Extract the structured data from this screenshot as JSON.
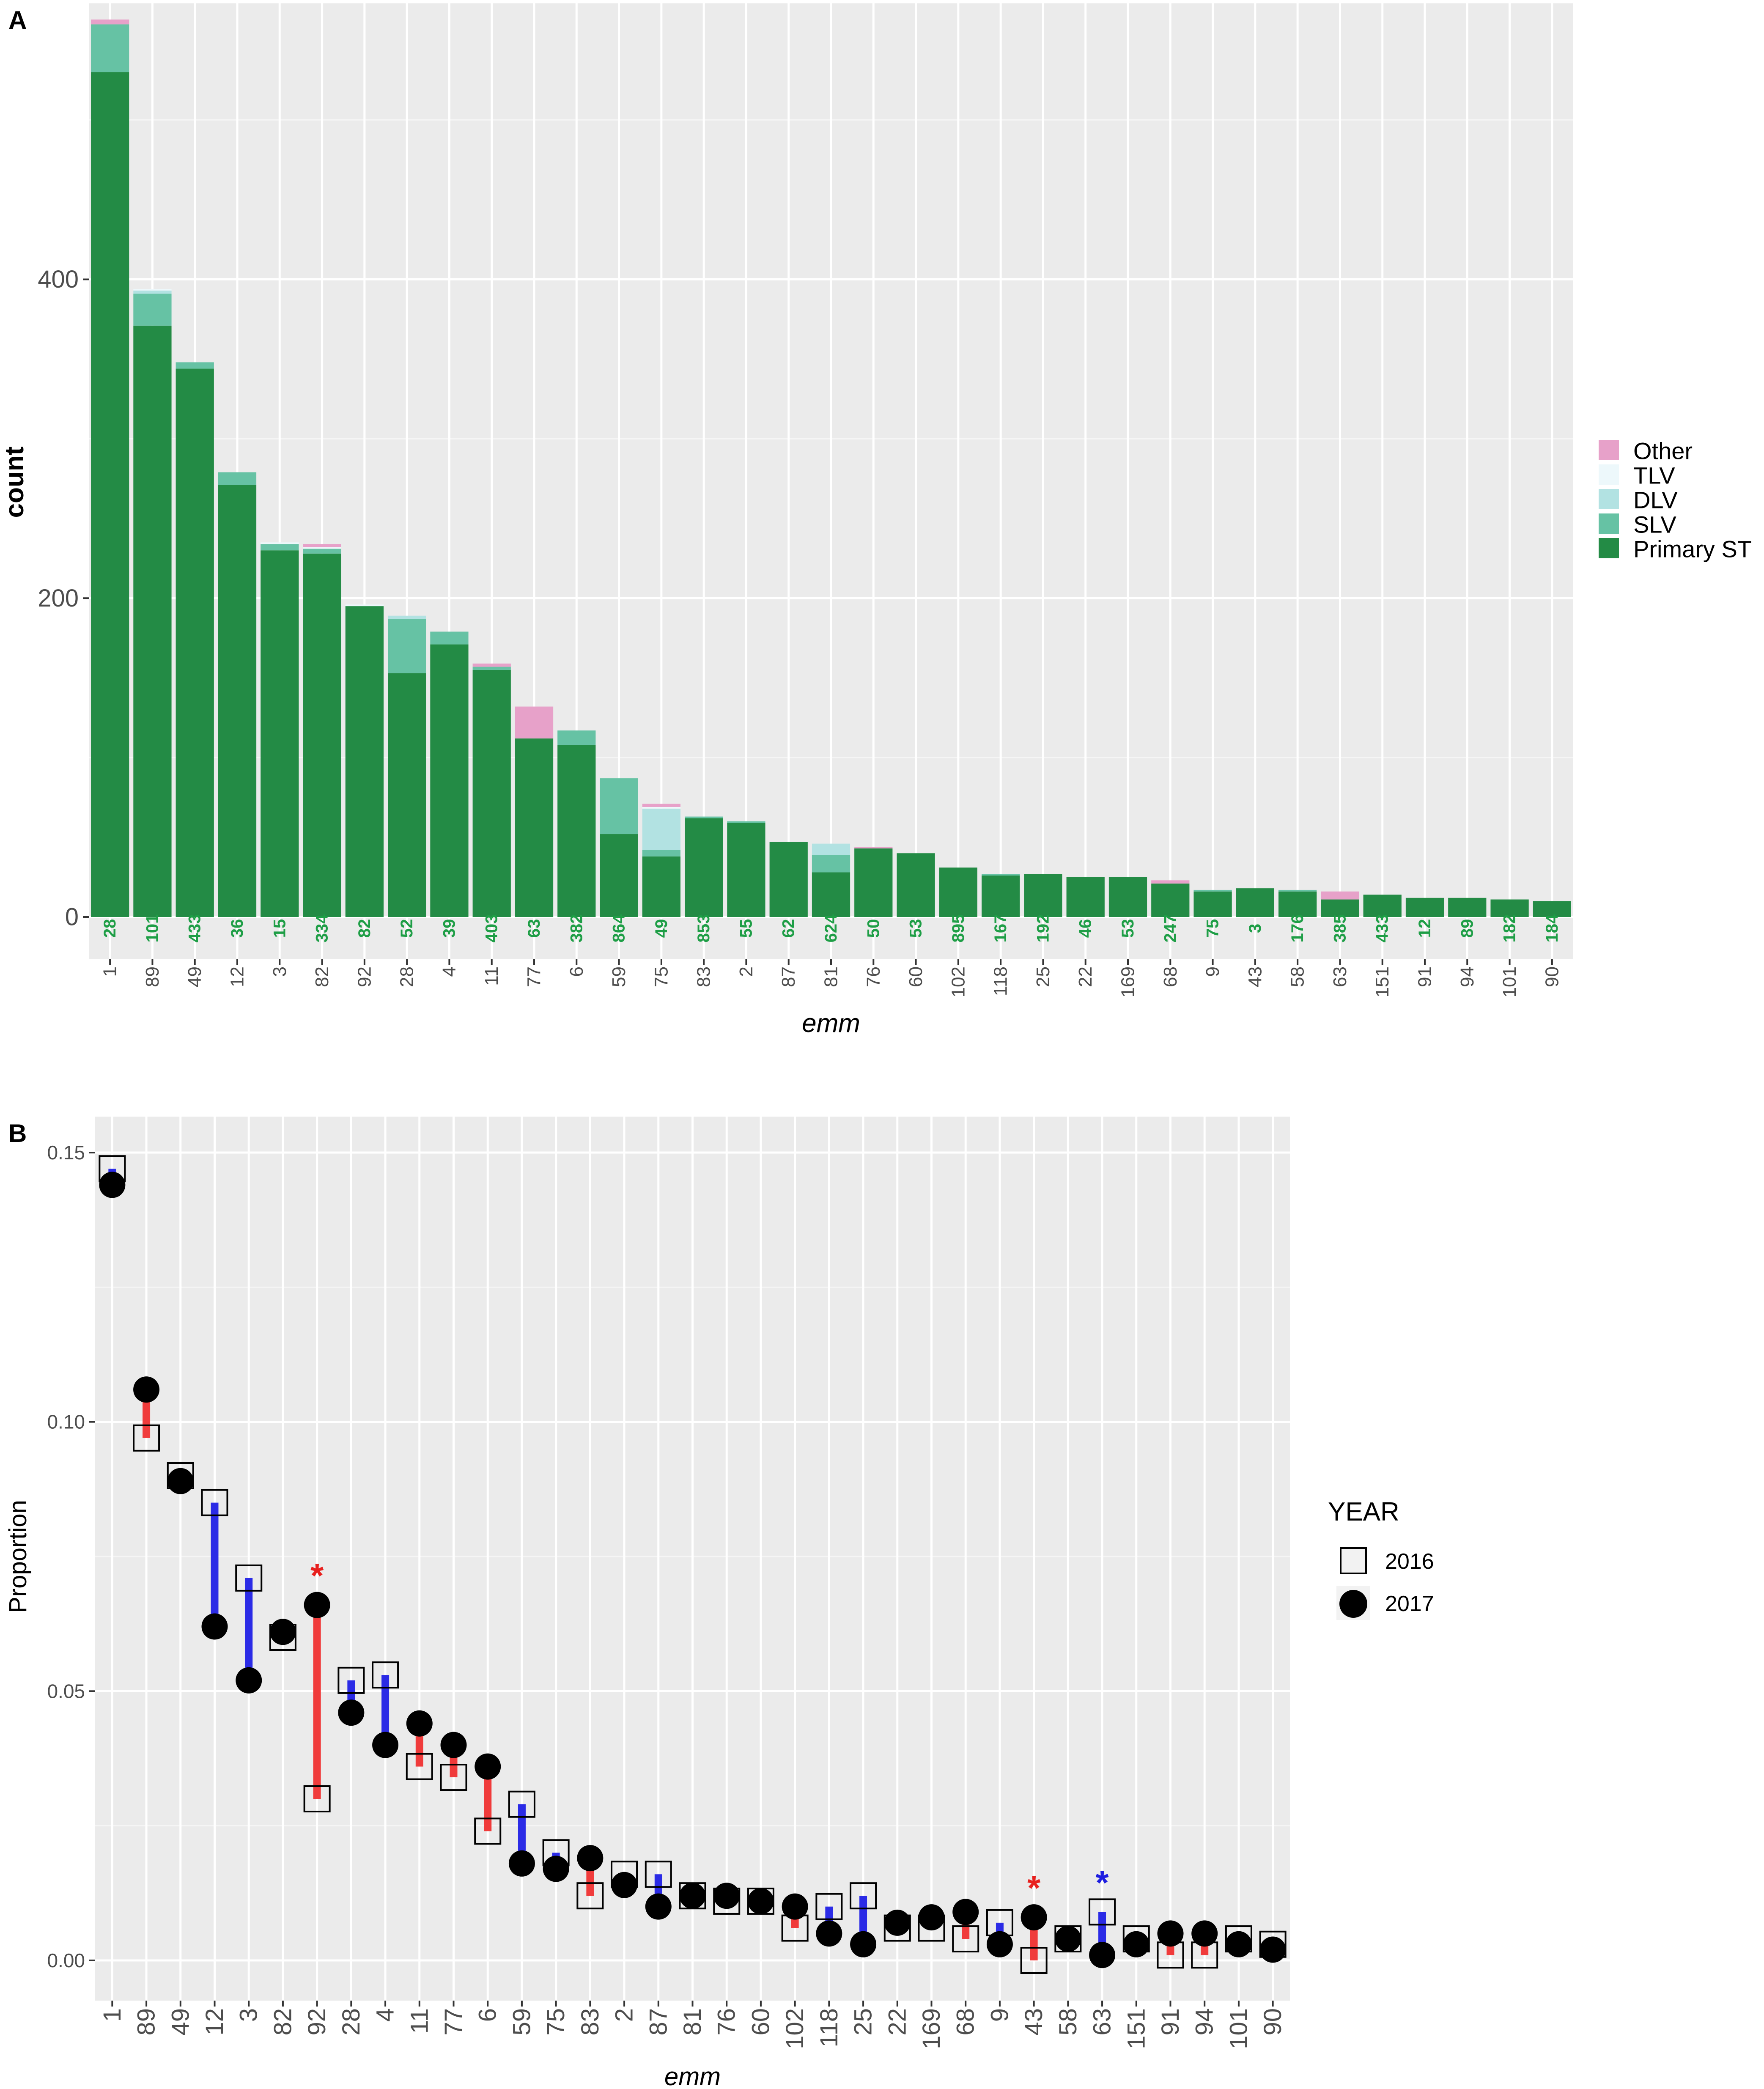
{
  "panels": {
    "a_label": "A",
    "b_label": "B"
  },
  "chart_data": [
    {
      "type": "bar",
      "stacked": true,
      "title": "",
      "xlabel": "emm",
      "ylabel": "count",
      "ylim": [
        0,
        575
      ],
      "yticks": [
        0,
        200,
        400
      ],
      "grid": true,
      "legend_position": "right",
      "categories": [
        "1",
        "89",
        "49",
        "12",
        "3",
        "82",
        "92",
        "28",
        "4",
        "11",
        "77",
        "6",
        "59",
        "75",
        "83",
        "2",
        "87",
        "81",
        "76",
        "60",
        "102",
        "118",
        "25",
        "22",
        "169",
        "68",
        "9",
        "43",
        "58",
        "63",
        "151",
        "91",
        "94",
        "101",
        "90"
      ],
      "bar_labels": [
        "28",
        "101",
        "433",
        "36",
        "15",
        "334",
        "82",
        "52",
        "39",
        "403",
        "63",
        "382",
        "864",
        "49",
        "853",
        "55",
        "62",
        "624",
        "50",
        "53",
        "895",
        "167",
        "192",
        "46",
        "53",
        "247",
        "75",
        "3",
        "176",
        "385",
        "433",
        "12",
        "89",
        "182",
        "184"
      ],
      "series": [
        {
          "name": "Primary ST",
          "color": "#238B45",
          "values": [
            530,
            371,
            344,
            271,
            230,
            228,
            195,
            153,
            171,
            155,
            112,
            108,
            52,
            38,
            62,
            59,
            47,
            28,
            43,
            40,
            31,
            26,
            27,
            25,
            25,
            21,
            16,
            18,
            16,
            11,
            14,
            12,
            12,
            11,
            10
          ]
        },
        {
          "name": "SLV",
          "color": "#66C2A4",
          "values": [
            30,
            20,
            4,
            8,
            4,
            3,
            0,
            34,
            8,
            2,
            0,
            9,
            35,
            4,
            1,
            1,
            0,
            11,
            0,
            0,
            0,
            1,
            0,
            0,
            0,
            0,
            1,
            0,
            1,
            0,
            0,
            0,
            0,
            0,
            0
          ]
        },
        {
          "name": "DLV",
          "color": "#B2E2E2",
          "values": [
            0,
            2,
            0,
            0,
            0,
            0,
            0,
            2,
            0,
            0,
            0,
            0,
            0,
            26,
            0,
            0,
            0,
            7,
            0,
            0,
            0,
            0,
            0,
            0,
            0,
            0,
            0,
            0,
            0,
            0,
            0,
            0,
            0,
            0,
            0
          ]
        },
        {
          "name": "TLV",
          "color": "#EDF8FB",
          "values": [
            0,
            1,
            0,
            0,
            1,
            1,
            1,
            0,
            0,
            0,
            0,
            0,
            0,
            1,
            0,
            0,
            0,
            0,
            0,
            0,
            0,
            0,
            0,
            0,
            0,
            0,
            0,
            0,
            0,
            0,
            0,
            0,
            0,
            0,
            0
          ]
        },
        {
          "name": "Other",
          "color": "#E7A1C9",
          "values": [
            3,
            0,
            0,
            0,
            0,
            2,
            0,
            0,
            0,
            2,
            20,
            0,
            0,
            2,
            0,
            0,
            0,
            0,
            1,
            0,
            0,
            0,
            0,
            0,
            0,
            2,
            0,
            0,
            0,
            5,
            0,
            0,
            0,
            0,
            0
          ]
        }
      ],
      "legend_order": [
        "Other",
        "TLV",
        "DLV",
        "SLV",
        "Primary ST"
      ]
    },
    {
      "type": "scatter",
      "title": "",
      "xlabel": "emm",
      "ylabel": "Proportion",
      "ylim": [
        -0.006,
        0.153
      ],
      "yticks": [
        "0.00",
        "0.05",
        "0.10",
        "0.15"
      ],
      "ytick_values": [
        0,
        0.05,
        0.1,
        0.15
      ],
      "grid": true,
      "legend_title": "YEAR",
      "legend_position": "right",
      "categories": [
        "1",
        "89",
        "49",
        "12",
        "3",
        "82",
        "92",
        "28",
        "4",
        "11",
        "77",
        "6",
        "59",
        "75",
        "83",
        "2",
        "87",
        "81",
        "76",
        "60",
        "102",
        "118",
        "25",
        "22",
        "169",
        "68",
        "9",
        "43",
        "58",
        "63",
        "151",
        "91",
        "94",
        "101",
        "90"
      ],
      "series": [
        {
          "name": "2016",
          "marker": "open-square",
          "values": [
            0.147,
            0.097,
            0.09,
            0.085,
            0.071,
            0.06,
            0.03,
            0.052,
            0.053,
            0.036,
            0.034,
            0.024,
            0.029,
            0.02,
            0.012,
            0.016,
            0.016,
            0.012,
            0.011,
            0.011,
            0.006,
            0.01,
            0.012,
            0.006,
            0.006,
            0.004,
            0.007,
            0.0,
            0.004,
            0.009,
            0.004,
            0.001,
            0.001,
            0.004,
            0.003
          ]
        },
        {
          "name": "2017",
          "marker": "filled-circle",
          "values": [
            0.144,
            0.106,
            0.089,
            0.062,
            0.052,
            0.061,
            0.066,
            0.046,
            0.04,
            0.044,
            0.04,
            0.036,
            0.018,
            0.017,
            0.019,
            0.014,
            0.01,
            0.012,
            0.012,
            0.011,
            0.01,
            0.005,
            0.003,
            0.007,
            0.008,
            0.009,
            0.003,
            0.008,
            0.004,
            0.001,
            0.003,
            0.005,
            0.005,
            0.003,
            0.002
          ]
        }
      ],
      "segment_colors": {
        "increase": "#F03B3B",
        "decrease": "#2B2BE6"
      },
      "annotations": [
        {
          "category": "92",
          "text": "*",
          "color": "#E8201E"
        },
        {
          "category": "43",
          "text": "*",
          "color": "#E8201E"
        },
        {
          "category": "63",
          "text": "*",
          "color": "#1E1EE0"
        }
      ]
    }
  ]
}
